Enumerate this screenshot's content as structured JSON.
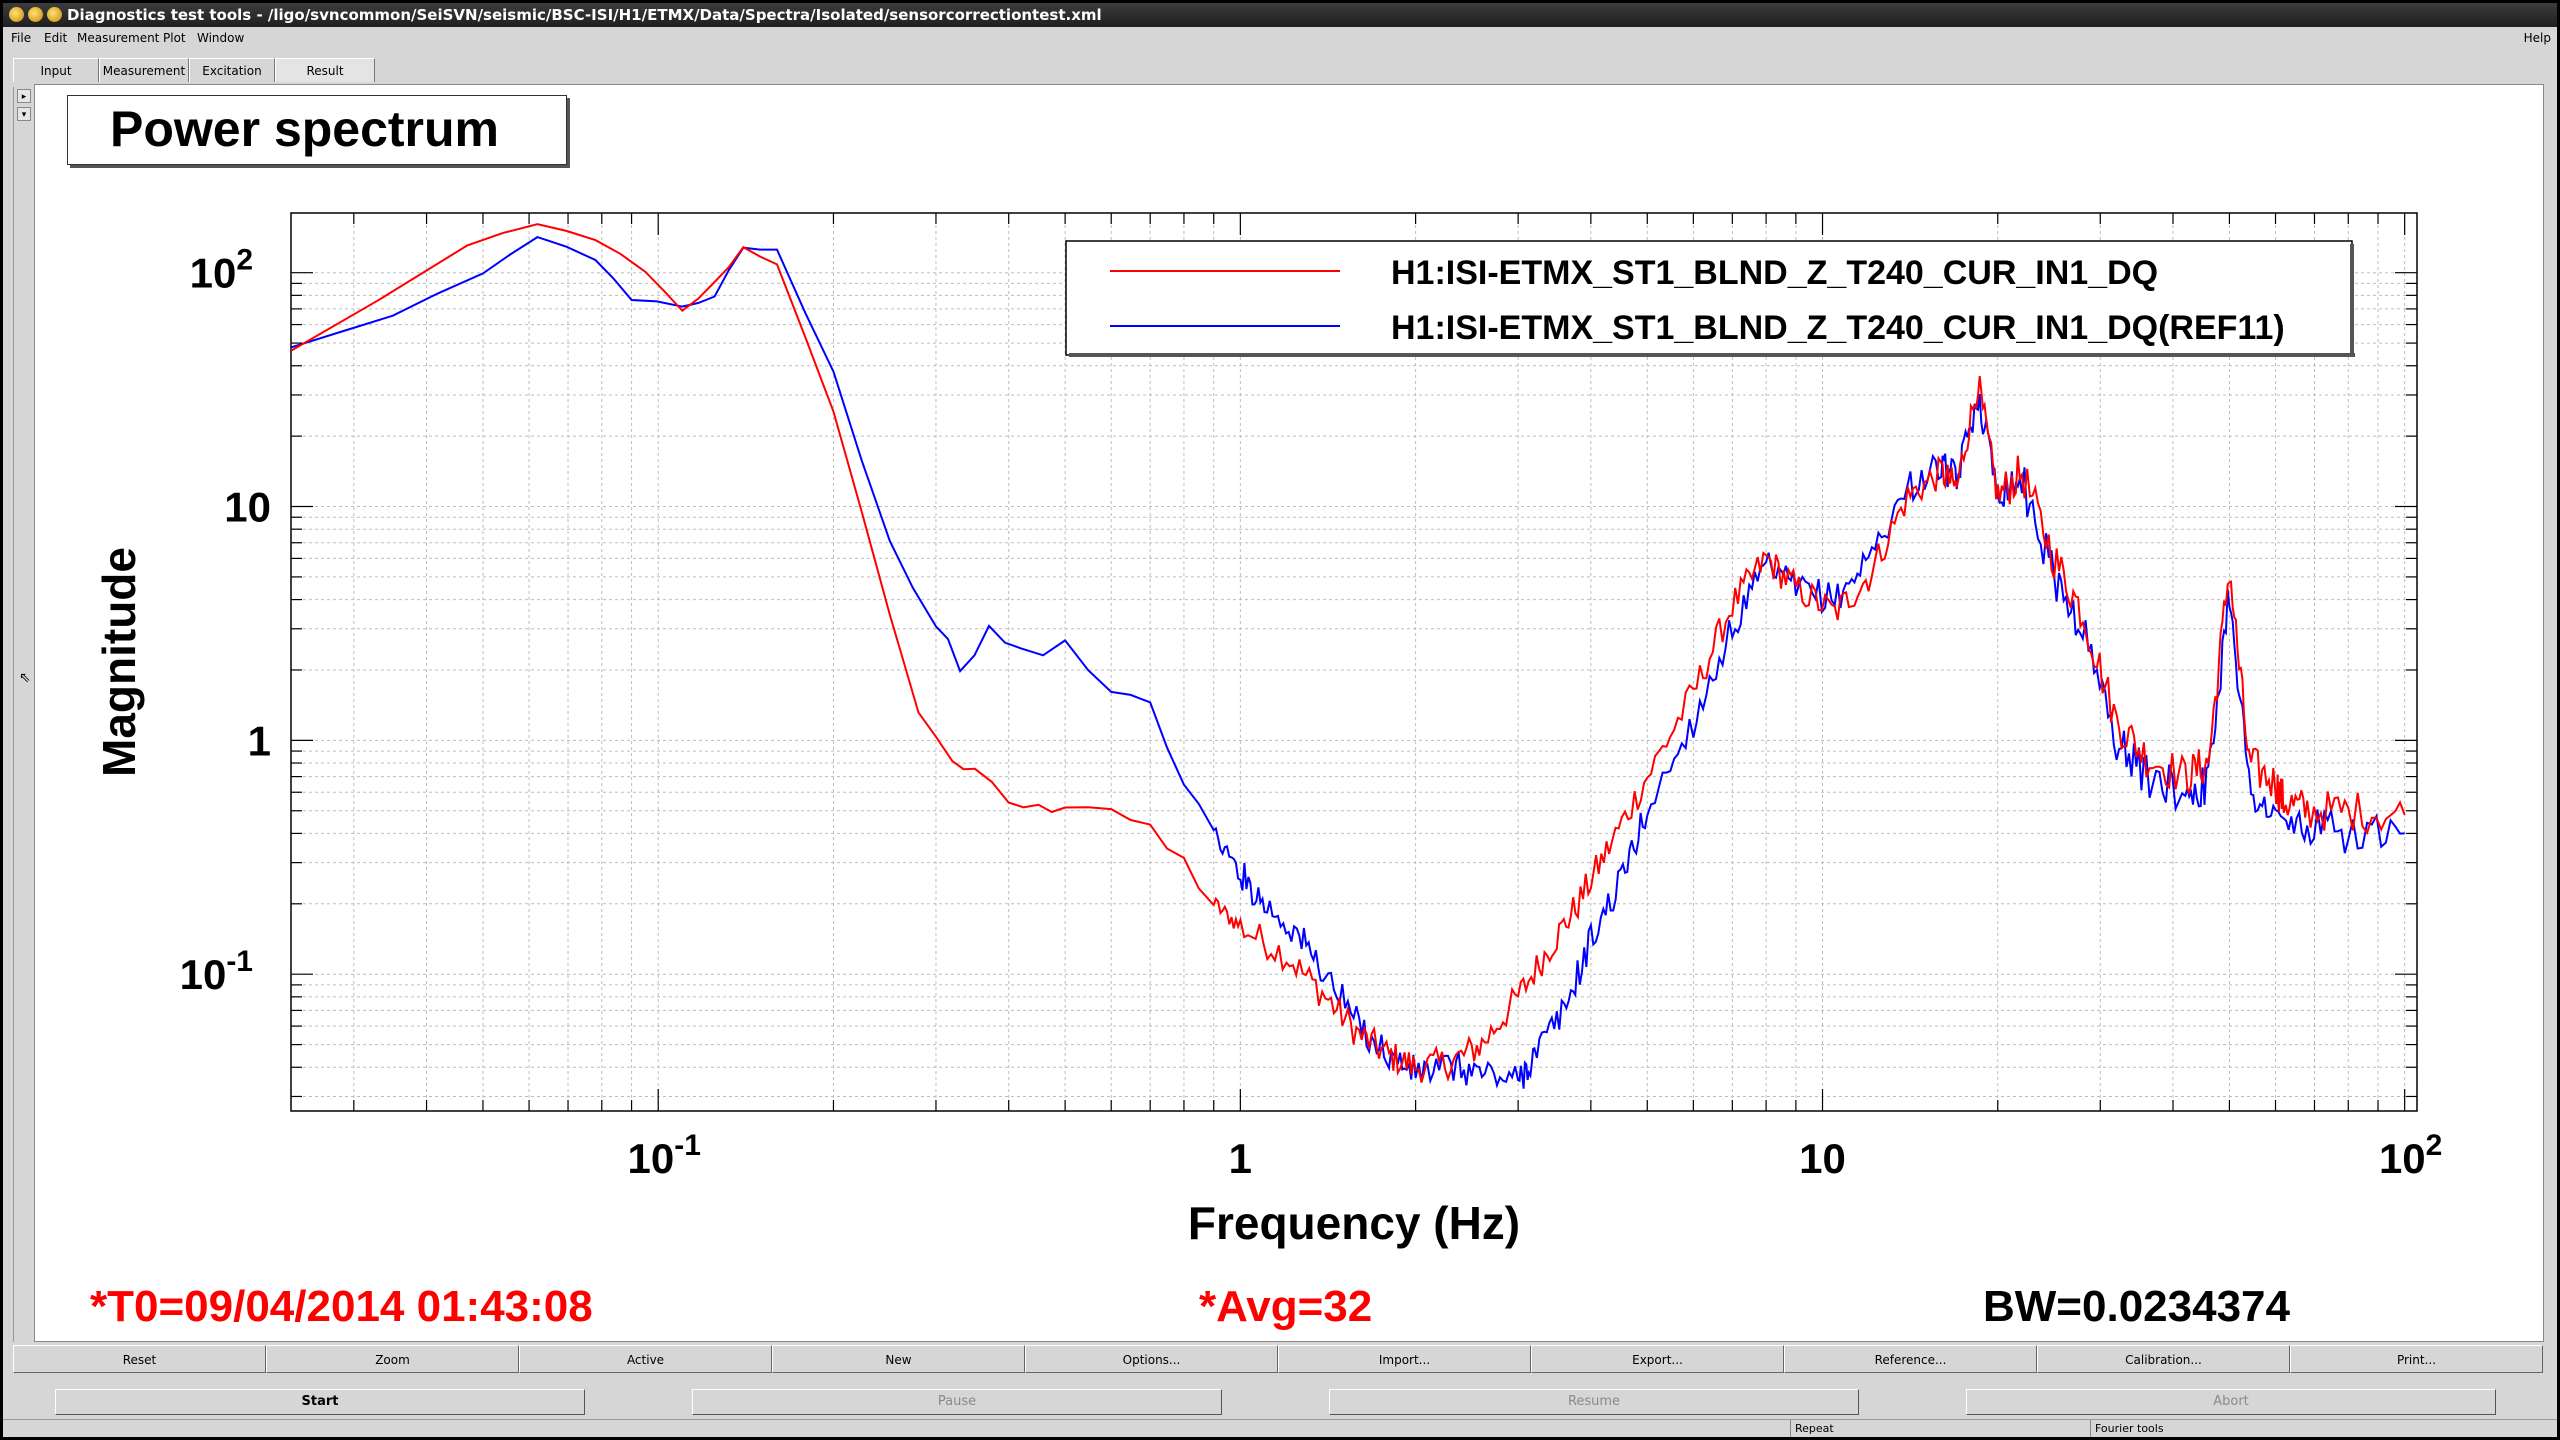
{
  "window": {
    "title": "Diagnostics test tools - /ligo/svncommon/SeiSVN/seismic/BSC-ISI/H1/ETMX/Data/Spectra/Isolated/sensorcorrectiontest.xml"
  },
  "menu": {
    "items": [
      "File",
      "Edit",
      "Measurement",
      "Plot",
      "Window"
    ],
    "help": "Help"
  },
  "tabs": [
    "Input",
    "Measurement",
    "Excitation",
    "Result"
  ],
  "side_buttons": [
    "▸",
    "▾"
  ],
  "plot": {
    "title": "Power spectrum",
    "status": {
      "t0": "*T0=09/04/2014 01:43:08",
      "avg": "*Avg=32",
      "bw": "BW=0.0234374"
    }
  },
  "chart_data": {
    "type": "line",
    "title": "Power spectrum",
    "xlabel": "Frequency (Hz)",
    "ylabel": "Magnitude",
    "xscale": "log",
    "yscale": "log",
    "xlim": [
      0.0234,
      105
    ],
    "ylim": [
      0.026,
      180
    ],
    "grid": true,
    "legend_position": "top-right",
    "x_tick_labels": [
      {
        "value": 0.1,
        "base": "10",
        "exp": "-1"
      },
      {
        "value": 1,
        "base": "1",
        "exp": ""
      },
      {
        "value": 10,
        "base": "10",
        "exp": ""
      },
      {
        "value": 100,
        "base": "10",
        "exp": "2"
      }
    ],
    "y_tick_labels": [
      {
        "value": 100,
        "base": "10",
        "exp": "2"
      },
      {
        "value": 10,
        "base": "10",
        "exp": ""
      },
      {
        "value": 1,
        "base": "1",
        "exp": ""
      },
      {
        "value": 0.1,
        "base": "10",
        "exp": "-1"
      }
    ],
    "series": [
      {
        "name": "H1:ISI-ETMX_ST1_BLND_Z_T240_CUR_IN1_DQ",
        "color": "#ff0000",
        "points": [
          [
            0.0234,
            46
          ],
          [
            0.047,
            130
          ],
          [
            0.062,
            160
          ],
          [
            0.078,
            140
          ],
          [
            0.095,
            100
          ],
          [
            0.11,
            68
          ],
          [
            0.125,
            90
          ],
          [
            0.14,
            128
          ],
          [
            0.16,
            110
          ],
          [
            0.2,
            25
          ],
          [
            0.25,
            3.5
          ],
          [
            0.28,
            1.3
          ],
          [
            0.32,
            0.85
          ],
          [
            0.35,
            0.7
          ],
          [
            0.4,
            0.55
          ],
          [
            0.45,
            0.5
          ],
          [
            0.5,
            0.55
          ],
          [
            0.6,
            0.52
          ],
          [
            0.7,
            0.4
          ],
          [
            0.8,
            0.3
          ],
          [
            0.9,
            0.2
          ],
          [
            1.0,
            0.16
          ],
          [
            1.2,
            0.12
          ],
          [
            1.4,
            0.08
          ],
          [
            1.6,
            0.055
          ],
          [
            1.8,
            0.045
          ],
          [
            2.0,
            0.04
          ],
          [
            2.3,
            0.042
          ],
          [
            2.6,
            0.05
          ],
          [
            3.0,
            0.08
          ],
          [
            3.4,
            0.13
          ],
          [
            3.8,
            0.2
          ],
          [
            4.3,
            0.35
          ],
          [
            5.0,
            0.7
          ],
          [
            6.0,
            1.6
          ],
          [
            7.0,
            3.8
          ],
          [
            8.0,
            6.0
          ],
          [
            9.0,
            4.5
          ],
          [
            10.5,
            3.5
          ],
          [
            12.0,
            5.0
          ],
          [
            14.0,
            11
          ],
          [
            16.0,
            14
          ],
          [
            17.0,
            12
          ],
          [
            18.5,
            34
          ],
          [
            20.0,
            11
          ],
          [
            22.0,
            14
          ],
          [
            25.0,
            6.0
          ],
          [
            28.0,
            3.5
          ],
          [
            32.0,
            1.2
          ],
          [
            36.0,
            0.85
          ],
          [
            42.0,
            0.7
          ],
          [
            46.0,
            0.8
          ],
          [
            50.0,
            5.5
          ],
          [
            54.0,
            0.8
          ],
          [
            60.0,
            0.65
          ],
          [
            62.0,
            0.55
          ],
          [
            68.0,
            0.5
          ],
          [
            80.0,
            0.5
          ],
          [
            100.0,
            0.48
          ]
        ]
      },
      {
        "name": "H1:ISI-ETMX_ST1_BLND_Z_T240_CUR_IN1_DQ(REF11)",
        "color": "#0000ff",
        "points": [
          [
            0.0234,
            47
          ],
          [
            0.035,
            65
          ],
          [
            0.05,
            100
          ],
          [
            0.062,
            142
          ],
          [
            0.078,
            115
          ],
          [
            0.09,
            78
          ],
          [
            0.11,
            72
          ],
          [
            0.125,
            80
          ],
          [
            0.14,
            130
          ],
          [
            0.16,
            125
          ],
          [
            0.2,
            37
          ],
          [
            0.25,
            7.0
          ],
          [
            0.3,
            3.0
          ],
          [
            0.33,
            2.1
          ],
          [
            0.37,
            2.9
          ],
          [
            0.42,
            2.3
          ],
          [
            0.5,
            2.6
          ],
          [
            0.6,
            1.6
          ],
          [
            0.7,
            1.4
          ],
          [
            0.8,
            0.7
          ],
          [
            0.9,
            0.4
          ],
          [
            1.0,
            0.27
          ],
          [
            1.1,
            0.2
          ],
          [
            1.25,
            0.15
          ],
          [
            1.4,
            0.1
          ],
          [
            1.6,
            0.06
          ],
          [
            1.8,
            0.045
          ],
          [
            2.0,
            0.038
          ],
          [
            2.3,
            0.04
          ],
          [
            2.6,
            0.038
          ],
          [
            3.0,
            0.035
          ],
          [
            3.2,
            0.045
          ],
          [
            3.6,
            0.07
          ],
          [
            4.0,
            0.14
          ],
          [
            4.5,
            0.25
          ],
          [
            5.0,
            0.5
          ],
          [
            6.0,
            1.2
          ],
          [
            7.0,
            3.0
          ],
          [
            8.0,
            5.5
          ],
          [
            9.0,
            4.5
          ],
          [
            10.5,
            4.0
          ],
          [
            12.0,
            6.0
          ],
          [
            14.0,
            12
          ],
          [
            16.0,
            15
          ],
          [
            17.0,
            13
          ],
          [
            18.5,
            30
          ],
          [
            20.0,
            12
          ],
          [
            22.0,
            13
          ],
          [
            25.0,
            5.0
          ],
          [
            28.0,
            3.0
          ],
          [
            32.0,
            1.0
          ],
          [
            36.0,
            0.7
          ],
          [
            42.0,
            0.6
          ],
          [
            46.0,
            0.65
          ],
          [
            50.0,
            4.5
          ],
          [
            54.0,
            0.65
          ],
          [
            60.0,
            0.45
          ],
          [
            68.0,
            0.42
          ],
          [
            80.0,
            0.4
          ],
          [
            100.0,
            0.4
          ]
        ]
      }
    ]
  },
  "buttons_row1": [
    "Reset",
    "Zoom",
    "Active",
    "New",
    "Options...",
    "Import...",
    "Export...",
    "Reference...",
    "Calibration...",
    "Print..."
  ],
  "buttons_row2": [
    {
      "label": "Start",
      "enabled": true
    },
    {
      "label": "Pause",
      "enabled": false
    },
    {
      "label": "Resume",
      "enabled": false
    },
    {
      "label": "Abort",
      "enabled": false
    }
  ],
  "status_bar": [
    "Repeat",
    "Fourier tools"
  ],
  "colors": {
    "title_bar": "#2a2a2a",
    "window_bg": "#d6d6d6",
    "plot_bg": "#ffffff",
    "status_red": "#ff0000"
  }
}
